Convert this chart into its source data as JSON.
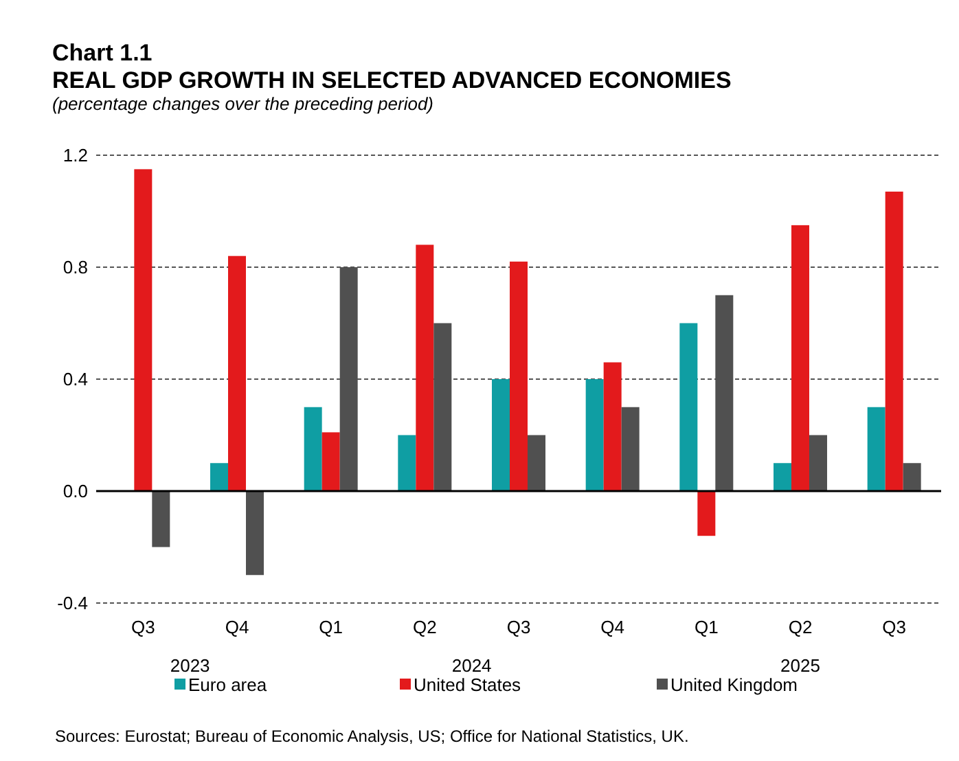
{
  "chart_data": {
    "type": "bar",
    "title": "Chart 1.1\nREAL GDP GROWTH IN SELECTED ADVANCED ECONOMIES",
    "subtitle": "(percentage changes over the preceding period)",
    "categories": [
      "Q3",
      "Q4",
      "Q1",
      "Q2",
      "Q3",
      "Q4",
      "Q1",
      "Q2",
      "Q3"
    ],
    "series": [
      {
        "name": "Euro area",
        "color": "#0f9ea3",
        "values": [
          0,
          0.1,
          0.3,
          0.2,
          0.4,
          0.4,
          0.6,
          0.1,
          0.3
        ]
      },
      {
        "name": "United States",
        "color": "#e31a1c",
        "values": [
          1.15,
          0.84,
          0.21,
          0.88,
          0.82,
          0.46,
          -0.16,
          0.95,
          1.07
        ]
      },
      {
        "name": "United Kingdom",
        "color": "#505050",
        "values": [
          -0.2,
          -0.3,
          0.8,
          0.6,
          0.2,
          0.3,
          0.7,
          0.2,
          0.1
        ]
      }
    ],
    "ylim": [
      -0.4,
      1.2
    ],
    "yticks": [
      {
        "value": -0.4,
        "label": "-0.4"
      },
      {
        "value": 0,
        "label": "0.0"
      },
      {
        "value": 0.4,
        "label": "0.4"
      },
      {
        "value": 0.8,
        "label": "0.8"
      },
      {
        "value": 1.2,
        "label": "1.2"
      }
    ],
    "grid": "y",
    "legend": "bottom",
    "annotations": [
      "2023",
      "2024",
      "2025",
      "Sources: Eurostat; Bureau of Economic Analysis, US; Office for National Statistics, UK."
    ]
  }
}
